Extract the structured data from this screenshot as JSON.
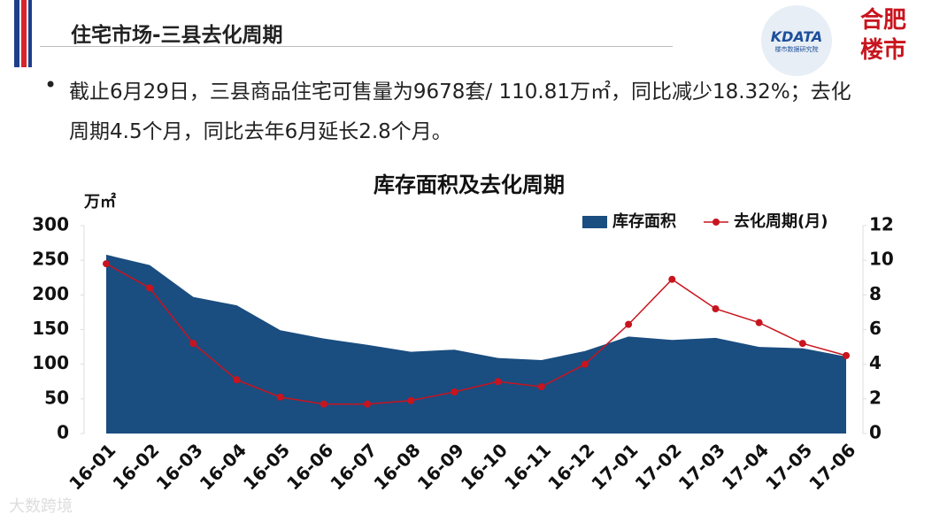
{
  "header": {
    "title": "住宅市场-三县去化周期"
  },
  "logos": {
    "kdata": "KDATA",
    "kdata_sub": "楼市数据研究院",
    "local": "合肥楼市"
  },
  "bullet": "截止6月29日，三县商品住宅可售量为9678套/ 110.81万㎡，同比减少18.32%；去化周期4.5个月，同比去年6月延长2.8个月。",
  "watermark": "大数跨境",
  "chart_data": {
    "type": "area-line",
    "title": "库存面积及去化周期",
    "y_label": "万㎡",
    "categories": [
      "16-01",
      "16-02",
      "16-03",
      "16-04",
      "16-05",
      "16-06",
      "16-07",
      "16-08",
      "16-09",
      "16-10",
      "16-11",
      "16-12",
      "17-01",
      "17-02",
      "17-03",
      "17-04",
      "17-05",
      "17-06"
    ],
    "series": [
      {
        "name": "库存面积",
        "type": "area",
        "color": "#1a4d80",
        "values": [
          258,
          243,
          197,
          185,
          149,
          137,
          128,
          118,
          121,
          109,
          106,
          119,
          140,
          135,
          138,
          125,
          123,
          111
        ]
      },
      {
        "name": "去化周期(月)",
        "type": "line",
        "axis": "y2",
        "color": "#c8141e",
        "values": [
          9.8,
          8.4,
          5.2,
          3.1,
          2.1,
          1.7,
          1.7,
          1.9,
          2.4,
          3.0,
          2.7,
          4.0,
          6.3,
          8.9,
          7.2,
          6.4,
          5.2,
          4.5
        ]
      }
    ],
    "ylim": [
      0,
      300
    ],
    "yticks": [
      0,
      50,
      100,
      150,
      200,
      250,
      300
    ],
    "y2lim": [
      0,
      12
    ],
    "y2ticks": [
      0,
      2,
      4,
      6,
      8,
      10,
      12
    ],
    "legend": "top-right"
  }
}
